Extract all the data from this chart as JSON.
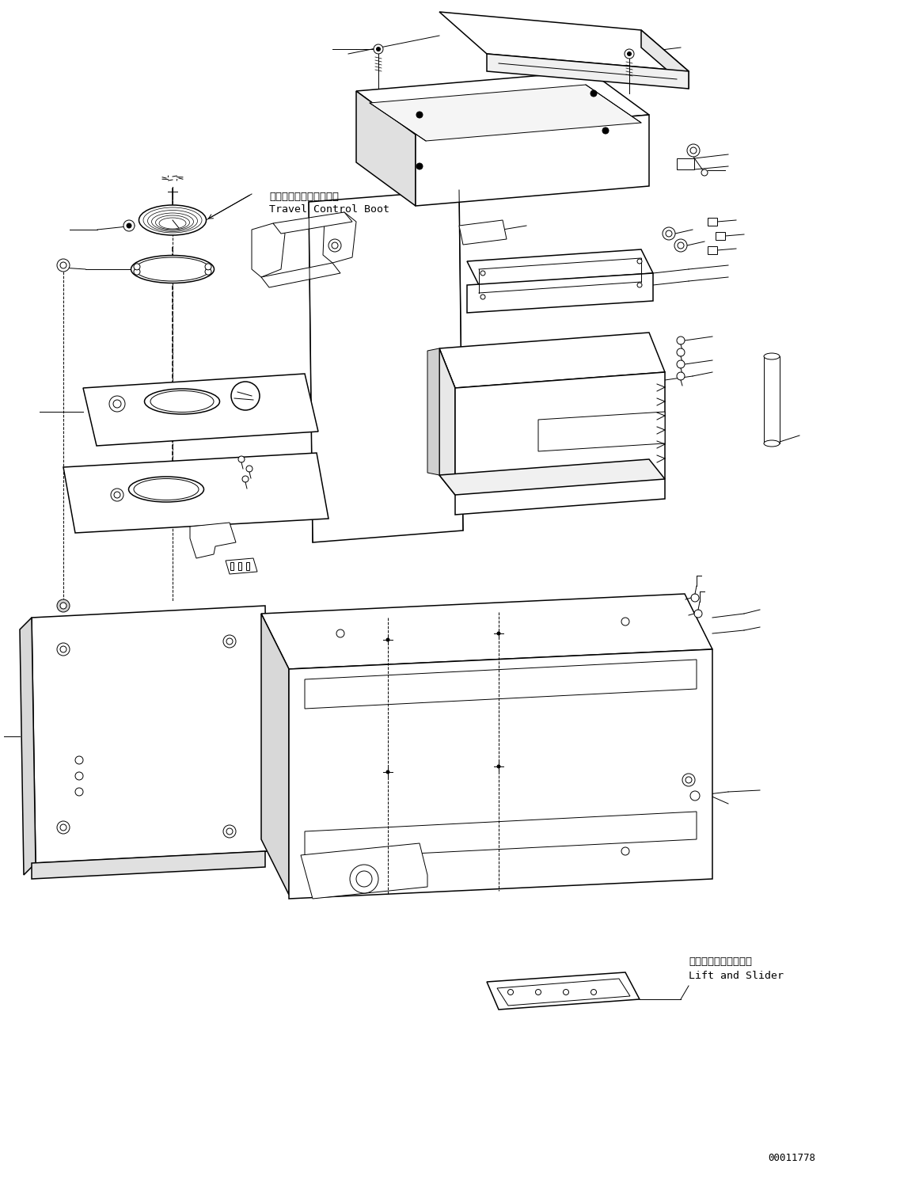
{
  "background_color": "#ffffff",
  "line_color": "#000000",
  "text_color": "#000000",
  "figure_width": 11.37,
  "figure_height": 14.89,
  "dpi": 100,
  "part_number": "00011778",
  "label_travel_control_boot_jp": "走行コントロールブート",
  "label_travel_control_boot_en": "Travel Control Boot",
  "label_lift_slider_jp": "リフトおよびスライダ",
  "label_lift_slider_en": "Lift and Slider",
  "font_size_labels": 9.5,
  "font_size_partnumber": 9
}
